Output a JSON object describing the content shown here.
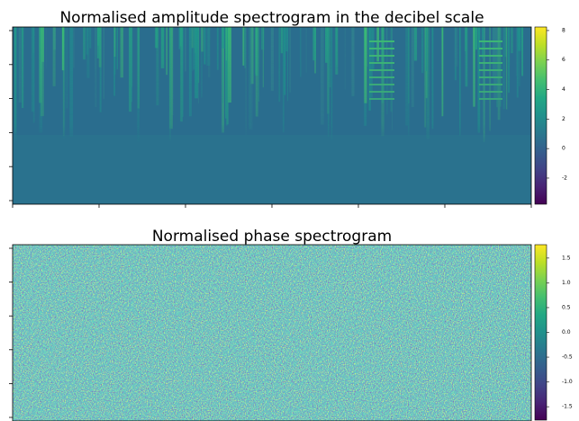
{
  "chart_data": [
    {
      "type": "heatmap",
      "title": "Normalised amplitude spectrogram in the decibel scale",
      "clim": [
        -3.77,
        8.24
      ],
      "cticks": [
        8,
        6,
        4,
        2,
        0,
        -2
      ]
    },
    {
      "type": "heatmap",
      "title": "Normalised phase spectrogram",
      "clim": [
        -1.77,
        1.77
      ],
      "cticks": [
        1.5,
        {
          "value": 1,
          "label": "1.0"
        },
        0.5,
        {
          "value": 0,
          "label": "0.0"
        },
        -0.5,
        {
          "value": -1,
          "label": "-1.0"
        },
        -1.5
      ]
    }
  ]
}
